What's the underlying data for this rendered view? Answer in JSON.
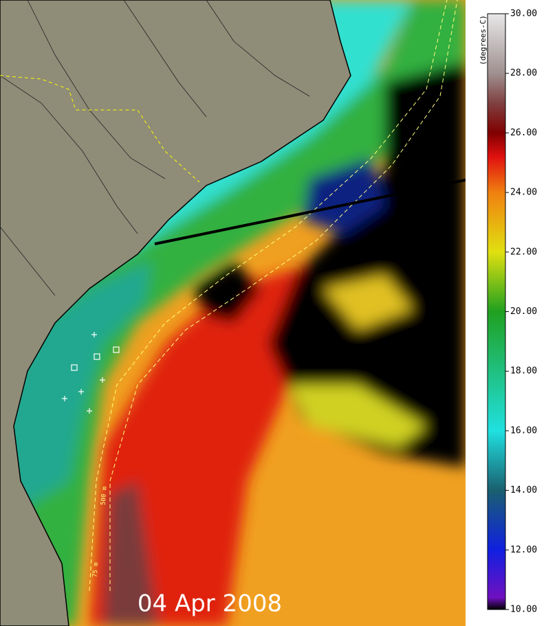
{
  "map": {
    "date": "04 Apr 2008",
    "contour_labels": [
      "75 m",
      "500 m"
    ],
    "colorbar": {
      "label": "(degrees-C)",
      "lim": [
        10,
        30
      ],
      "ticks": [
        {
          "value": 10,
          "label": "10.00"
        },
        {
          "value": 12,
          "label": "12.00"
        },
        {
          "value": 14,
          "label": "14.00"
        },
        {
          "value": 16,
          "label": "16.00"
        },
        {
          "value": 18,
          "label": "18.00"
        },
        {
          "value": 20,
          "label": "20.00"
        },
        {
          "value": 22,
          "label": "22.00"
        },
        {
          "value": 24,
          "label": "24.00"
        },
        {
          "value": 26,
          "label": "26.00"
        },
        {
          "value": 28,
          "label": "28.00"
        },
        {
          "value": 30,
          "label": "30.00"
        }
      ]
    }
  }
}
